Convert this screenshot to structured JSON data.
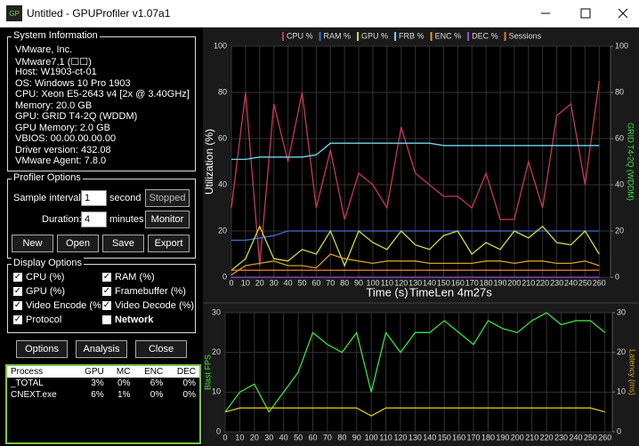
{
  "window_title": "Untitled - GPUProfiler v1.07a1",
  "system_information": {
    "title": "System Information",
    "lines": [
      "VMware, Inc.",
      "VMware7,1 (☐☐)",
      "Host: W1903-ct-01",
      "OS: Windows 10 Pro 1903",
      "CPU: Xeon E5-2643 v4 [2x @ 3.40GHz]",
      "Memory: 20.0 GB",
      "GPU: GRID T4-2Q (WDDM)",
      "GPU Memory: 2.0 GB",
      "VBIOS: 00.00.00.00.00",
      "Driver version: 432.08",
      "VMware Agent: 7.8.0"
    ]
  },
  "profiler_options": {
    "title": "Profiler Options",
    "sample_interval_label": "Sample interval:",
    "sample_interval": "1",
    "sample_unit": "second",
    "duration_label": "Duration:",
    "duration": "4",
    "duration_unit": "minutes",
    "stopped": "Stopped",
    "monitor": "Monitor",
    "buttons": [
      "New",
      "Open",
      "Save",
      "Export"
    ]
  },
  "display_options": {
    "title": "Display Options",
    "items": [
      {
        "label": "CPU (%)",
        "checked": true
      },
      {
        "label": "RAM (%)",
        "checked": true
      },
      {
        "label": "GPU (%)",
        "checked": true
      },
      {
        "label": "Framebuffer (%)",
        "checked": true
      },
      {
        "label": "Video Encode (%",
        "checked": true
      },
      {
        "label": "Video Decode (%)",
        "checked": true
      },
      {
        "label": "Protocol",
        "checked": true
      },
      {
        "label": "Network",
        "checked": false
      }
    ]
  },
  "bottom_buttons": [
    "Options",
    "Analysis",
    "Close"
  ],
  "process_table": {
    "columns": [
      "Process",
      "GPU",
      "MC",
      "ENC",
      "DEC"
    ],
    "rows": [
      [
        "_TOTAL",
        "3%",
        "0%",
        "6%",
        "0%"
      ],
      [
        "CNEXT.exe",
        "6%",
        "1%",
        "0%",
        "0%"
      ]
    ]
  },
  "chart_data": [
    {
      "type": "line",
      "x_label": "Time (s)",
      "annotation": "TimeLen 4m27s",
      "y_label": "Utilization (%)",
      "y2_label": "GRID T4-2Q (WDDM)",
      "legend": "top",
      "grid": true,
      "x": [
        0,
        10,
        20,
        30,
        40,
        50,
        60,
        70,
        80,
        90,
        100,
        110,
        120,
        130,
        140,
        150,
        160,
        170,
        180,
        190,
        200,
        210,
        220,
        230,
        240,
        250,
        260
      ],
      "xlim": [
        0,
        268
      ],
      "xticks": [
        0,
        10,
        20,
        30,
        40,
        50,
        60,
        70,
        80,
        90,
        100,
        110,
        120,
        130,
        140,
        150,
        160,
        170,
        180,
        190,
        200,
        210,
        220,
        230,
        240,
        250,
        260
      ],
      "ylim": [
        0,
        100
      ],
      "yticks": [
        0,
        20,
        40,
        60,
        80,
        100
      ],
      "y2lim": [
        0,
        100
      ],
      "y2ticks": [
        0,
        20,
        40,
        60,
        80,
        100
      ],
      "series": [
        {
          "name": "CPU %",
          "color": "#c8375a",
          "values": [
            30,
            80,
            5,
            75,
            50,
            80,
            30,
            55,
            25,
            45,
            40,
            30,
            65,
            45,
            40,
            35,
            35,
            30,
            45,
            25,
            25,
            50,
            30,
            70,
            75,
            40,
            85
          ]
        },
        {
          "name": "RAM %",
          "color": "#3a6fd8",
          "values": [
            16,
            16,
            17,
            18,
            20,
            20,
            20,
            20,
            20,
            20,
            20,
            20,
            20,
            20,
            20,
            20,
            20,
            20,
            20,
            20,
            20,
            20,
            20,
            20,
            20,
            20,
            20
          ]
        },
        {
          "name": "GPU %",
          "color": "#c8e040",
          "values": [
            3,
            8,
            22,
            8,
            7,
            12,
            10,
            20,
            5,
            20,
            15,
            12,
            20,
            14,
            12,
            18,
            20,
            10,
            15,
            12,
            20,
            17,
            22,
            15,
            14,
            20,
            10
          ]
        },
        {
          "name": "FRB %",
          "color": "#6fd8f0",
          "values": [
            51,
            51,
            52,
            52,
            52,
            52,
            53,
            58,
            58,
            58,
            58,
            58,
            58,
            58,
            58,
            57,
            57,
            57,
            57,
            57,
            57,
            57,
            57,
            57,
            57,
            57,
            57
          ]
        },
        {
          "name": "ENC %",
          "color": "#d8a020",
          "values": [
            1,
            5,
            6,
            7,
            5,
            5,
            4,
            10,
            8,
            7,
            6,
            7,
            7,
            7,
            6,
            6,
            6,
            6,
            7,
            7,
            6,
            7,
            7,
            6,
            6,
            7,
            5
          ]
        },
        {
          "name": "DEC %",
          "color": "#9a4ad8",
          "values": [
            0,
            0,
            0,
            0,
            0,
            0,
            0,
            0,
            0,
            0,
            0,
            0,
            0,
            0,
            0,
            0,
            0,
            0,
            0,
            0,
            0,
            0,
            0,
            0,
            0,
            0,
            0
          ]
        },
        {
          "name": "Sessions",
          "color": "#e07a30",
          "values": [
            3,
            3,
            3,
            3,
            3,
            3,
            3,
            3,
            3,
            3,
            3,
            3,
            3,
            3,
            3,
            3,
            3,
            3,
            3,
            3,
            3,
            3,
            3,
            3,
            3,
            3,
            3
          ]
        }
      ]
    },
    {
      "type": "line",
      "y_label": "Blast FPS",
      "y2_label": "Latency (ms)",
      "grid": true,
      "x": [
        0,
        10,
        20,
        30,
        40,
        50,
        60,
        70,
        80,
        90,
        100,
        110,
        120,
        130,
        140,
        150,
        160,
        170,
        180,
        190,
        200,
        210,
        220,
        230,
        240,
        250,
        260
      ],
      "xlim": [
        0,
        265
      ],
      "xticks": [
        0,
        10,
        20,
        30,
        40,
        50,
        60,
        70,
        80,
        90,
        100,
        110,
        120,
        130,
        140,
        150,
        160,
        170,
        180,
        190,
        200,
        210,
        220,
        230,
        240,
        250,
        260
      ],
      "ylim": [
        0,
        30
      ],
      "yticks": [
        0,
        10,
        20,
        30
      ],
      "y2lim": [
        0,
        30
      ],
      "y2ticks": [
        0,
        10,
        20,
        30
      ],
      "series": [
        {
          "name": "Blast FPS",
          "color": "#3ee03e",
          "values": [
            5,
            10,
            12,
            5,
            10,
            15,
            25,
            22,
            20,
            25,
            10,
            25,
            20,
            25,
            25,
            28,
            25,
            22,
            28,
            26,
            25,
            28,
            30,
            27,
            28,
            28,
            25
          ]
        },
        {
          "name": "Latency (ms)",
          "color": "#d8c020",
          "axis": "y2",
          "values": [
            5,
            6,
            6,
            6,
            6,
            6,
            6,
            6,
            6,
            6,
            4,
            6,
            6,
            6,
            6,
            6,
            6,
            6,
            6,
            6,
            6,
            6,
            6,
            6,
            6,
            6,
            5
          ]
        }
      ]
    }
  ]
}
